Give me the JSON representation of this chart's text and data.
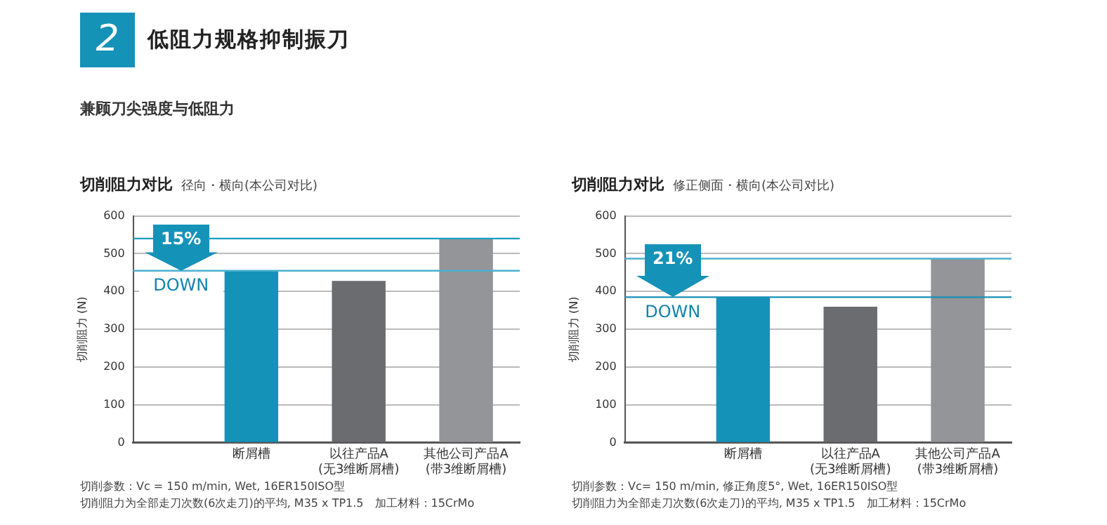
{
  "chart_data": [
    {
      "type": "bar",
      "title": "切削阻力对比",
      "subtitle": "径向・横向(本公司对比)",
      "ylabel": "切削阻力 (N)",
      "categories": [
        "断屑槽",
        "以往产品A\n(无3维断屑槽)",
        "其他公司产品A\n(带3维断屑槽)"
      ],
      "values": [
        455,
        428,
        540
      ],
      "colors": [
        "#1592b8",
        "#6b6c70",
        "#939598"
      ],
      "ylim": [
        0,
        600
      ],
      "yticks": [
        0,
        100,
        200,
        300,
        400,
        500,
        600
      ],
      "grid": "y",
      "legend": false,
      "ref_lines": [
        {
          "axis": "y",
          "value": 540,
          "color": "#1a9bc0"
        },
        {
          "axis": "y",
          "value": 455,
          "color": "#4ab0d0"
        }
      ],
      "annotations": [
        "2",
        "低阻力规格抑制振刀",
        "兼顾刀尖强度与低阻力",
        "15%",
        "DOWN",
        "切削参数：Vc = 150 m/min, Wet, 16ER150ISO型",
        "切削阻力为全部走刀次数(6次走刀)的平均, M35 x TP1.5　加工材料：15CrMo"
      ]
    },
    {
      "type": "bar",
      "title": "切削阻力对比",
      "subtitle": "修正侧面・横向(本公司对比)",
      "ylabel": "切削阻力 (N)",
      "categories": [
        "断屑槽",
        "以往产品A\n(无3维断屑槽)",
        "其他公司产品A\n(带3维断屑槽)"
      ],
      "values": [
        385,
        360,
        487
      ],
      "colors": [
        "#1592b8",
        "#6b6c70",
        "#939598"
      ],
      "ylim": [
        0,
        600
      ],
      "yticks": [
        0,
        100,
        200,
        300,
        400,
        500,
        600
      ],
      "grid": "y",
      "legend": false,
      "ref_lines": [
        {
          "axis": "y",
          "value": 487,
          "color": "#4ab0d0"
        },
        {
          "axis": "y",
          "value": 385,
          "color": "#1a8fb5"
        }
      ],
      "annotations": [
        "21%",
        "DOWN",
        "切削参数：Vc= 150 m/min, 修正角度5°, Wet, 16ER150ISO型",
        "切削阻力为全部走刀次数(6次走刀)的平均, M35 x TP1.5　加工材料：15CrMo"
      ]
    }
  ]
}
